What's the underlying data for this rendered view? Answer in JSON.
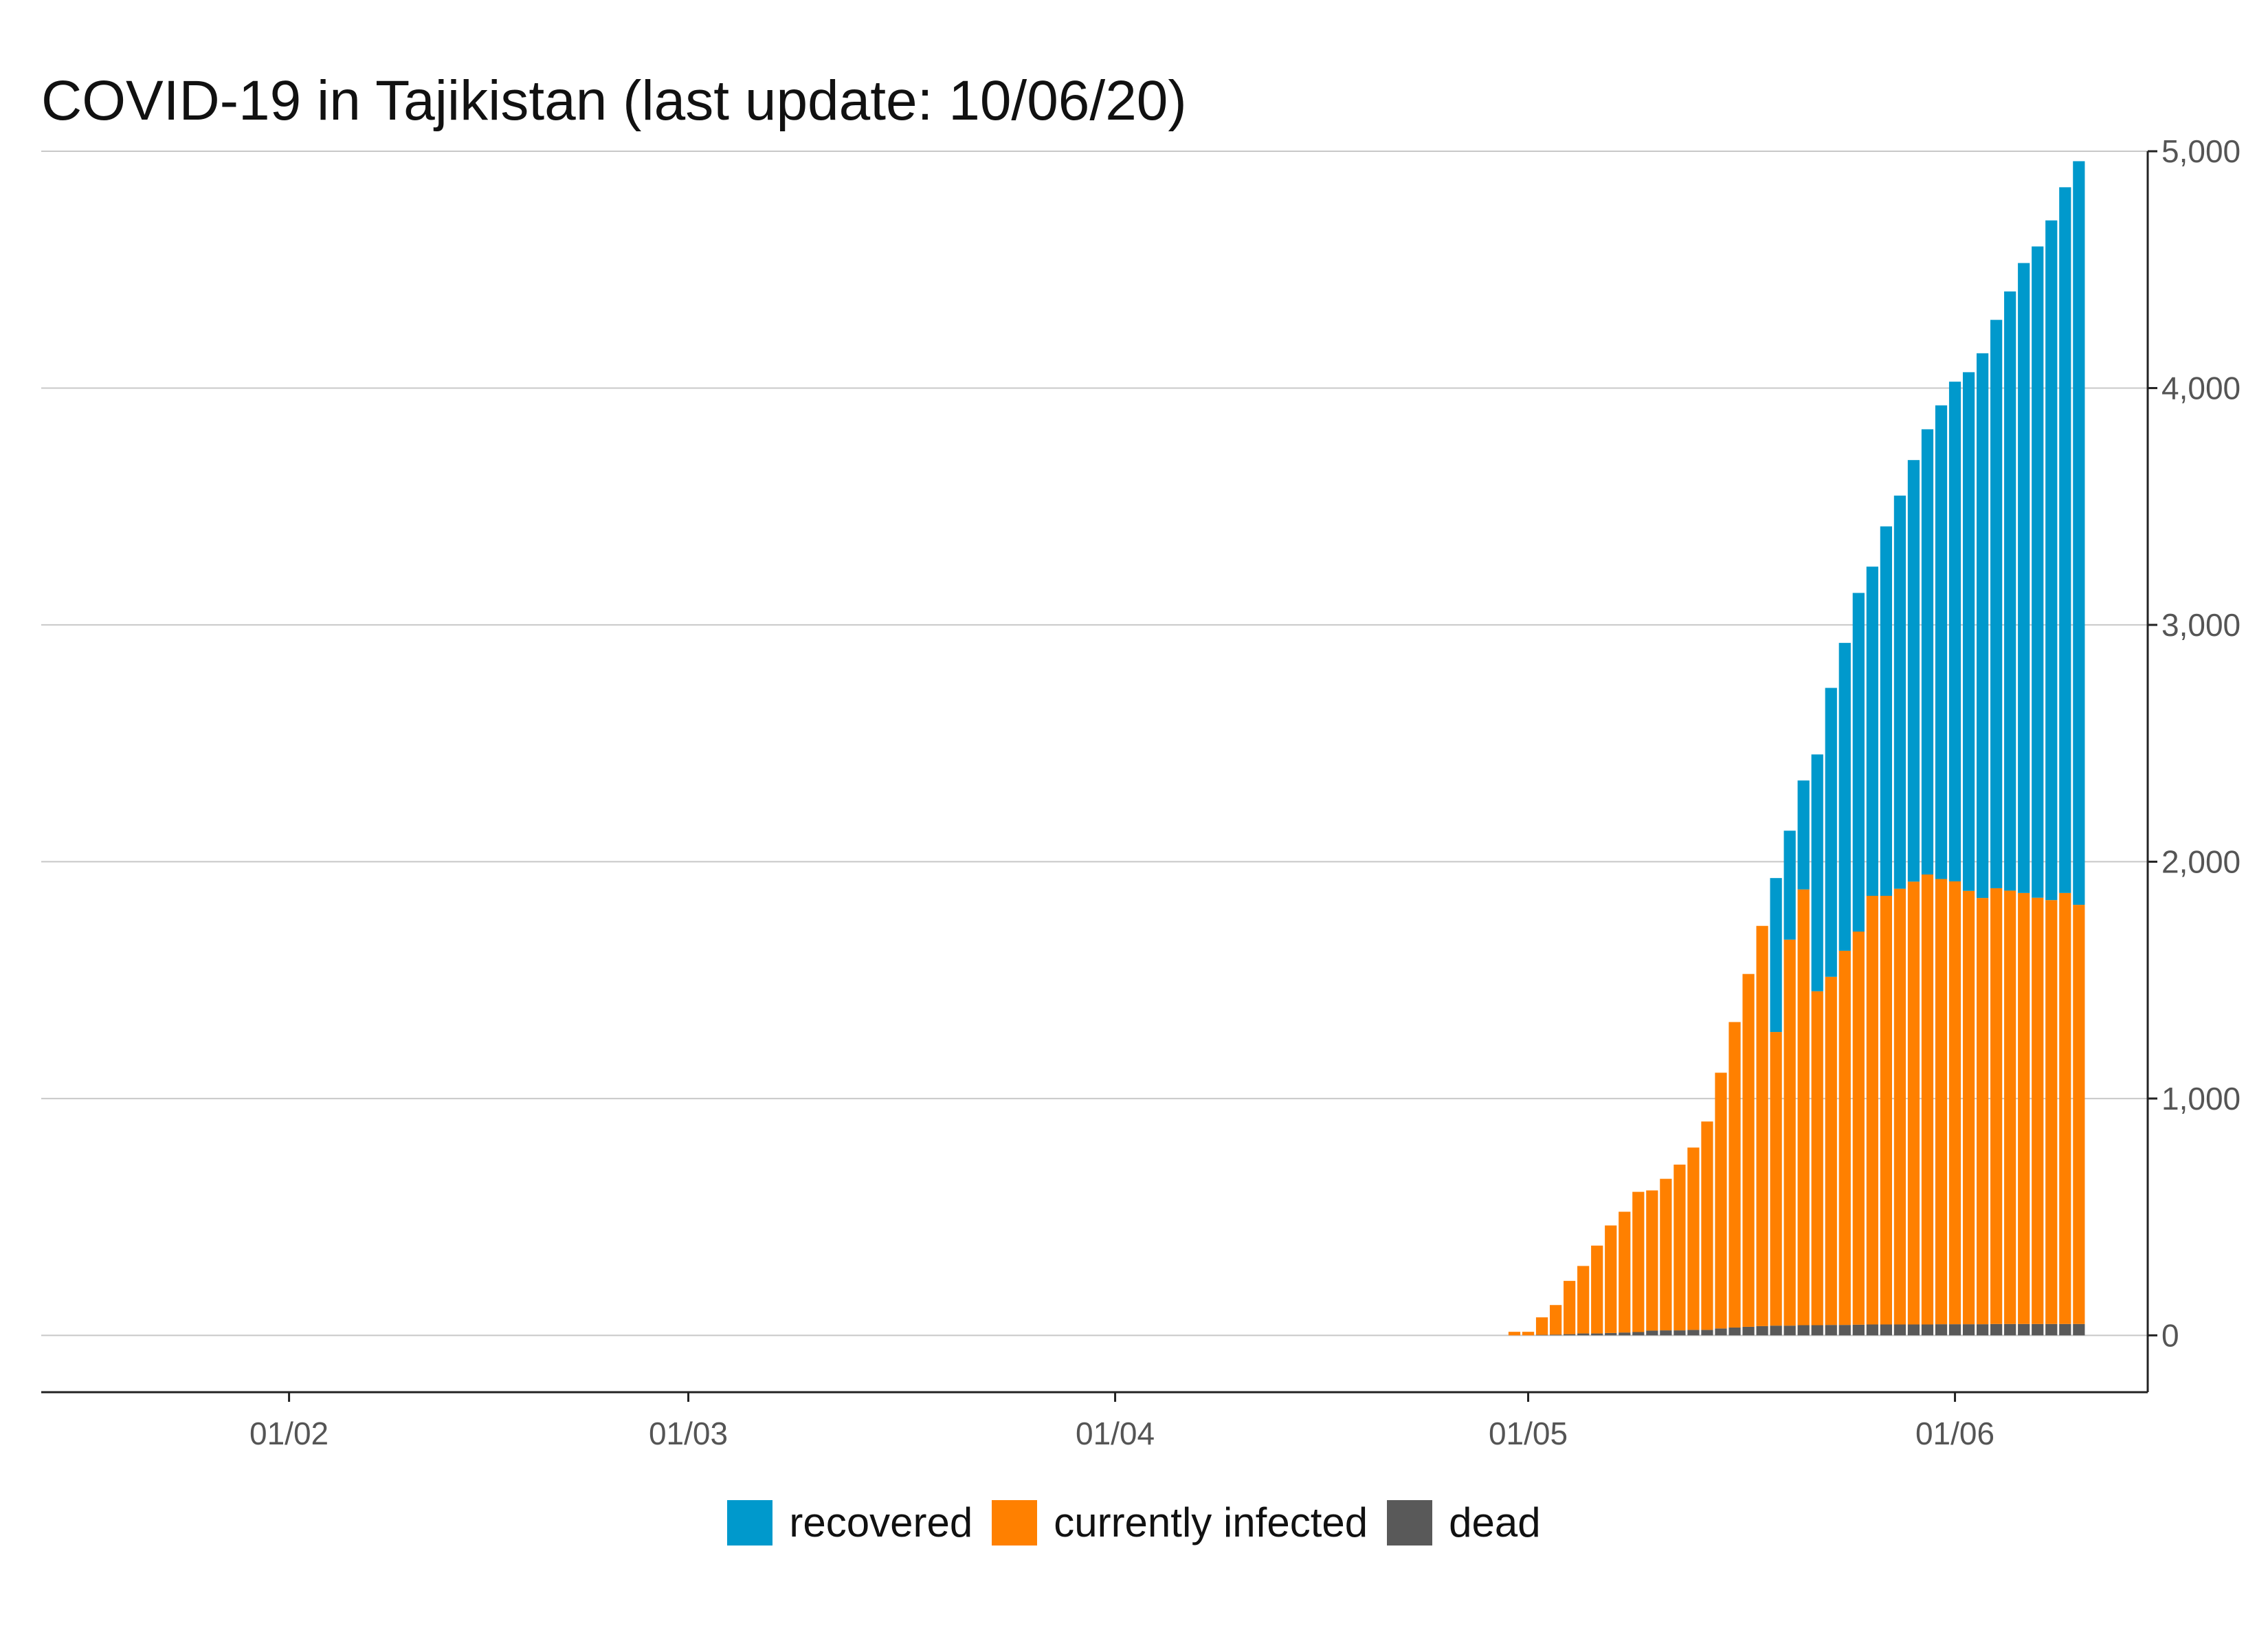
{
  "chart_data": {
    "type": "bar",
    "stacked": true,
    "title": "COVID-19 in Tajikistan (last update: 10/06/20)",
    "xlabel": "",
    "ylabel": "",
    "x_ticks": [
      "01/02",
      "01/03",
      "01/04",
      "01/05",
      "01/06"
    ],
    "x_tick_dates": [
      "2020-02-01",
      "2020-03-01",
      "2020-04-01",
      "2020-05-01",
      "2020-06-01"
    ],
    "xlim": [
      "2020-01-14",
      "2020-06-15"
    ],
    "y_ticks": [
      "0",
      "1,000",
      "2,000",
      "3,000",
      "4,000",
      "5,000"
    ],
    "ylim": [
      -240,
      5000
    ],
    "y_axis_position": "right",
    "grid": "horizontal",
    "legend_position": "bottom",
    "colors": {
      "recovered": "#0099cc",
      "currently_infected": "#ff8000",
      "dead": "#595959"
    },
    "legend": [
      {
        "name": "recovered",
        "color": "#0099cc"
      },
      {
        "name": "currently infected",
        "color": "#ff8000"
      },
      {
        "name": "dead",
        "color": "#595959"
      }
    ],
    "dates": [
      "2020-04-30",
      "2020-05-01",
      "2020-05-02",
      "2020-05-03",
      "2020-05-04",
      "2020-05-05",
      "2020-05-06",
      "2020-05-07",
      "2020-05-08",
      "2020-05-09",
      "2020-05-10",
      "2020-05-11",
      "2020-05-12",
      "2020-05-13",
      "2020-05-14",
      "2020-05-15",
      "2020-05-16",
      "2020-05-17",
      "2020-05-18",
      "2020-05-19",
      "2020-05-20",
      "2020-05-21",
      "2020-05-22",
      "2020-05-23",
      "2020-05-24",
      "2020-05-25",
      "2020-05-26",
      "2020-05-27",
      "2020-05-28",
      "2020-05-29",
      "2020-05-30",
      "2020-05-31",
      "2020-06-01",
      "2020-06-02",
      "2020-06-03",
      "2020-06-04",
      "2020-06-05",
      "2020-06-06",
      "2020-06-07",
      "2020-06-08",
      "2020-06-09",
      "2020-06-10"
    ],
    "series": [
      {
        "name": "dead",
        "values": [
          0,
          0,
          2,
          3,
          5,
          8,
          8,
          10,
          12,
          14,
          20,
          21,
          21,
          23,
          23,
          29,
          33,
          36,
          39,
          41,
          41,
          43,
          43,
          44,
          44,
          45,
          46,
          46,
          46,
          46,
          46,
          47,
          47,
          47,
          47,
          48,
          48,
          48,
          48,
          48,
          48,
          48
        ]
      },
      {
        "name": "currently infected",
        "values": [
          15,
          15,
          74,
          125,
          225,
          285,
          371,
          454,
          510,
          592,
          592,
          640,
          700,
          770,
          880,
          1080,
          1290,
          1490,
          1690,
          1240,
          1630,
          1840,
          1410,
          1470,
          1580,
          1660,
          1810,
          1810,
          1840,
          1870,
          1900,
          1880,
          1870,
          1830,
          1800,
          1840,
          1830,
          1820,
          1800,
          1790,
          1820,
          1770
        ]
      },
      {
        "name": "recovered",
        "values": [
          0,
          0,
          0,
          0,
          0,
          0,
          0,
          0,
          0,
          0,
          0,
          0,
          0,
          0,
          0,
          0,
          0,
          0,
          0,
          650,
          460,
          460,
          1000,
          1220,
          1300,
          1430,
          1390,
          1560,
          1660,
          1780,
          1880,
          2000,
          2110,
          2190,
          2300,
          2400,
          2530,
          2660,
          2750,
          2870,
          2980,
          3140
        ]
      }
    ]
  }
}
